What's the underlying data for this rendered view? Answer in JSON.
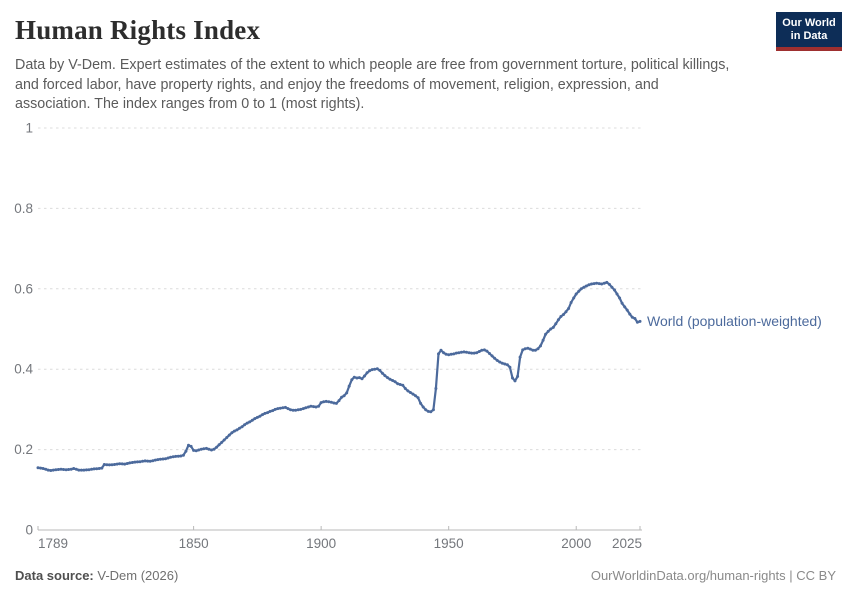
{
  "header": {
    "title": "Human Rights Index",
    "subtitle": "Data by V-Dem. Expert estimates of the extent to which people are free from government torture, political killings, and forced labor, have property rights, and enjoy the freedoms of movement, religion, expression, and association. The index ranges from 0 to 1 (most rights).",
    "logo": {
      "line1": "Our World",
      "line2": "in Data",
      "bg_color": "#0d2d57",
      "stripe_color": "#9e2f2f"
    }
  },
  "footer": {
    "datasource_label": "Data source:",
    "datasource_value": " V-Dem (2026)",
    "attribution": "OurWorldinData.org/human-rights | CC BY"
  },
  "chart_data": {
    "type": "line",
    "title": "Human Rights Index",
    "xlabel": "",
    "ylabel": "",
    "xlim": [
      1789,
      2025
    ],
    "ylim": [
      0,
      1
    ],
    "x_ticks": [
      1789,
      1850,
      1900,
      1950,
      2000,
      2025
    ],
    "y_ticks": [
      0,
      0.2,
      0.4,
      0.6,
      0.8,
      1
    ],
    "grid": "horizontal-dashed",
    "legend_position": "end-of-line",
    "colors": {
      "line": "#4c6a9c",
      "grid": "#dcdcdc",
      "axis": "#b8b8b8",
      "tick_label": "#74777c"
    },
    "series": [
      {
        "name": "World (population-weighted)",
        "color": "#4c6a9c",
        "points": [
          [
            1789,
            0.155
          ],
          [
            1791,
            0.153
          ],
          [
            1793,
            0.149
          ],
          [
            1794,
            0.148
          ],
          [
            1796,
            0.15
          ],
          [
            1798,
            0.151
          ],
          [
            1800,
            0.15
          ],
          [
            1802,
            0.151
          ],
          [
            1803,
            0.153
          ],
          [
            1805,
            0.149
          ],
          [
            1807,
            0.149
          ],
          [
            1809,
            0.15
          ],
          [
            1811,
            0.152
          ],
          [
            1813,
            0.153
          ],
          [
            1814,
            0.154
          ],
          [
            1815,
            0.163
          ],
          [
            1817,
            0.162
          ],
          [
            1819,
            0.163
          ],
          [
            1821,
            0.165
          ],
          [
            1823,
            0.164
          ],
          [
            1825,
            0.167
          ],
          [
            1827,
            0.169
          ],
          [
            1829,
            0.17
          ],
          [
            1831,
            0.172
          ],
          [
            1833,
            0.171
          ],
          [
            1835,
            0.174
          ],
          [
            1837,
            0.176
          ],
          [
            1839,
            0.177
          ],
          [
            1841,
            0.181
          ],
          [
            1843,
            0.183
          ],
          [
            1845,
            0.184
          ],
          [
            1846,
            0.186
          ],
          [
            1847,
            0.196
          ],
          [
            1848,
            0.211
          ],
          [
            1849,
            0.208
          ],
          [
            1850,
            0.198
          ],
          [
            1851,
            0.197
          ],
          [
            1852,
            0.199
          ],
          [
            1853,
            0.201
          ],
          [
            1854,
            0.202
          ],
          [
            1855,
            0.203
          ],
          [
            1856,
            0.201
          ],
          [
            1857,
            0.199
          ],
          [
            1858,
            0.201
          ],
          [
            1859,
            0.206
          ],
          [
            1860,
            0.212
          ],
          [
            1861,
            0.218
          ],
          [
            1862,
            0.224
          ],
          [
            1863,
            0.23
          ],
          [
            1864,
            0.236
          ],
          [
            1865,
            0.242
          ],
          [
            1866,
            0.246
          ],
          [
            1867,
            0.249
          ],
          [
            1868,
            0.253
          ],
          [
            1869,
            0.257
          ],
          [
            1870,
            0.262
          ],
          [
            1871,
            0.266
          ],
          [
            1872,
            0.269
          ],
          [
            1873,
            0.273
          ],
          [
            1874,
            0.277
          ],
          [
            1875,
            0.28
          ],
          [
            1876,
            0.283
          ],
          [
            1877,
            0.287
          ],
          [
            1878,
            0.29
          ],
          [
            1879,
            0.292
          ],
          [
            1880,
            0.295
          ],
          [
            1881,
            0.297
          ],
          [
            1882,
            0.3
          ],
          [
            1883,
            0.302
          ],
          [
            1884,
            0.303
          ],
          [
            1885,
            0.304
          ],
          [
            1886,
            0.305
          ],
          [
            1887,
            0.302
          ],
          [
            1888,
            0.299
          ],
          [
            1889,
            0.298
          ],
          [
            1890,
            0.298
          ],
          [
            1891,
            0.299
          ],
          [
            1892,
            0.3
          ],
          [
            1893,
            0.302
          ],
          [
            1894,
            0.304
          ],
          [
            1895,
            0.306
          ],
          [
            1896,
            0.308
          ],
          [
            1897,
            0.307
          ],
          [
            1898,
            0.306
          ],
          [
            1899,
            0.308
          ],
          [
            1900,
            0.317
          ],
          [
            1901,
            0.319
          ],
          [
            1902,
            0.32
          ],
          [
            1903,
            0.319
          ],
          [
            1904,
            0.318
          ],
          [
            1905,
            0.316
          ],
          [
            1906,
            0.315
          ],
          [
            1907,
            0.322
          ],
          [
            1908,
            0.33
          ],
          [
            1909,
            0.334
          ],
          [
            1910,
            0.341
          ],
          [
            1911,
            0.358
          ],
          [
            1912,
            0.374
          ],
          [
            1913,
            0.38
          ],
          [
            1914,
            0.378
          ],
          [
            1915,
            0.379
          ],
          [
            1916,
            0.376
          ],
          [
            1917,
            0.383
          ],
          [
            1918,
            0.391
          ],
          [
            1919,
            0.396
          ],
          [
            1920,
            0.399
          ],
          [
            1921,
            0.4
          ],
          [
            1922,
            0.401
          ],
          [
            1923,
            0.397
          ],
          [
            1924,
            0.39
          ],
          [
            1925,
            0.384
          ],
          [
            1926,
            0.379
          ],
          [
            1927,
            0.375
          ],
          [
            1928,
            0.372
          ],
          [
            1929,
            0.369
          ],
          [
            1930,
            0.364
          ],
          [
            1931,
            0.362
          ],
          [
            1932,
            0.36
          ],
          [
            1933,
            0.352
          ],
          [
            1934,
            0.346
          ],
          [
            1935,
            0.342
          ],
          [
            1936,
            0.338
          ],
          [
            1937,
            0.334
          ],
          [
            1938,
            0.329
          ],
          [
            1939,
            0.315
          ],
          [
            1940,
            0.306
          ],
          [
            1941,
            0.299
          ],
          [
            1942,
            0.295
          ],
          [
            1943,
            0.294
          ],
          [
            1944,
            0.299
          ],
          [
            1945,
            0.352
          ],
          [
            1946,
            0.438
          ],
          [
            1947,
            0.447
          ],
          [
            1948,
            0.441
          ],
          [
            1949,
            0.437
          ],
          [
            1950,
            0.436
          ],
          [
            1951,
            0.437
          ],
          [
            1952,
            0.438
          ],
          [
            1953,
            0.44
          ],
          [
            1954,
            0.441
          ],
          [
            1955,
            0.442
          ],
          [
            1956,
            0.443
          ],
          [
            1957,
            0.442
          ],
          [
            1958,
            0.441
          ],
          [
            1959,
            0.44
          ],
          [
            1960,
            0.44
          ],
          [
            1961,
            0.441
          ],
          [
            1962,
            0.444
          ],
          [
            1963,
            0.447
          ],
          [
            1964,
            0.448
          ],
          [
            1965,
            0.445
          ],
          [
            1966,
            0.439
          ],
          [
            1967,
            0.433
          ],
          [
            1968,
            0.427
          ],
          [
            1969,
            0.422
          ],
          [
            1970,
            0.418
          ],
          [
            1971,
            0.415
          ],
          [
            1972,
            0.413
          ],
          [
            1973,
            0.411
          ],
          [
            1974,
            0.405
          ],
          [
            1975,
            0.378
          ],
          [
            1976,
            0.371
          ],
          [
            1977,
            0.382
          ],
          [
            1978,
            0.43
          ],
          [
            1979,
            0.448
          ],
          [
            1980,
            0.451
          ],
          [
            1981,
            0.452
          ],
          [
            1982,
            0.45
          ],
          [
            1983,
            0.447
          ],
          [
            1984,
            0.447
          ],
          [
            1985,
            0.451
          ],
          [
            1986,
            0.458
          ],
          [
            1987,
            0.472
          ],
          [
            1988,
            0.487
          ],
          [
            1989,
            0.494
          ],
          [
            1990,
            0.5
          ],
          [
            1991,
            0.504
          ],
          [
            1992,
            0.513
          ],
          [
            1993,
            0.523
          ],
          [
            1994,
            0.531
          ],
          [
            1995,
            0.536
          ],
          [
            1996,
            0.543
          ],
          [
            1997,
            0.551
          ],
          [
            1998,
            0.566
          ],
          [
            1999,
            0.577
          ],
          [
            2000,
            0.587
          ],
          [
            2001,
            0.594
          ],
          [
            2002,
            0.6
          ],
          [
            2003,
            0.604
          ],
          [
            2004,
            0.607
          ],
          [
            2005,
            0.61
          ],
          [
            2006,
            0.612
          ],
          [
            2007,
            0.613
          ],
          [
            2008,
            0.614
          ],
          [
            2009,
            0.613
          ],
          [
            2010,
            0.612
          ],
          [
            2011,
            0.614
          ],
          [
            2012,
            0.616
          ],
          [
            2013,
            0.611
          ],
          [
            2014,
            0.604
          ],
          [
            2015,
            0.597
          ],
          [
            2016,
            0.587
          ],
          [
            2017,
            0.577
          ],
          [
            2018,
            0.564
          ],
          [
            2019,
            0.555
          ],
          [
            2020,
            0.547
          ],
          [
            2021,
            0.537
          ],
          [
            2022,
            0.529
          ],
          [
            2023,
            0.526
          ],
          [
            2024,
            0.517
          ],
          [
            2025,
            0.519
          ]
        ]
      }
    ]
  }
}
